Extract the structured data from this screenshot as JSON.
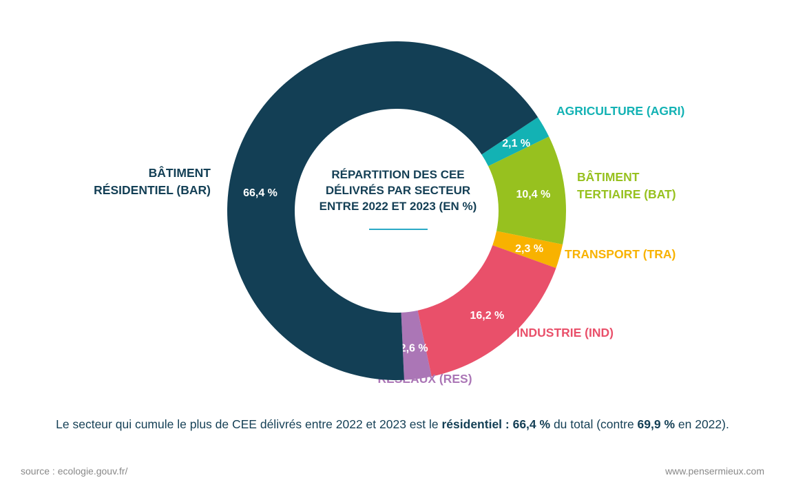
{
  "chart_data": {
    "type": "pie",
    "donut": true,
    "title": "RÉPARTITION DES CEE DÉLIVRÉS PAR SECTEUR ENTRE 2022 ET 2023 (EN %)",
    "slices": [
      {
        "label": "AGRICULTURE (AGRI)",
        "value": 2.1,
        "value_label": "2,1 %",
        "color": "#13b2b4"
      },
      {
        "label": "BÂTIMENT TERTIAIRE (BAT)",
        "value": 10.4,
        "value_label": "10,4 %",
        "color": "#97c11f"
      },
      {
        "label": "TRANSPORT (TRA)",
        "value": 2.3,
        "value_label": "2,3 %",
        "color": "#f8b200"
      },
      {
        "label": "INDUSTRIE (IND)",
        "value": 16.2,
        "value_label": "16,2 %",
        "color": "#e9506a"
      },
      {
        "label": "RÉSEAUX (RES)",
        "value": 2.6,
        "value_label": "2,6 %",
        "color": "#ab76b6"
      },
      {
        "label": "BÂTIMENT RÉSIDENTIEL (BAR)",
        "value": 66.4,
        "value_label": "66,4 %",
        "color": "#133f55"
      }
    ]
  },
  "caption": {
    "part1": "Le secteur qui cumule le plus de CEE délivrés entre 2022 et 2023 est le ",
    "bold1": "résidentiel : 66,4 %",
    "part2": " du total (contre ",
    "bold2": "69,9 %",
    "part3": " en 2022)."
  },
  "footer": {
    "source": "source : ecologie.gouv.fr/",
    "site": "www.pensermieux.com"
  }
}
